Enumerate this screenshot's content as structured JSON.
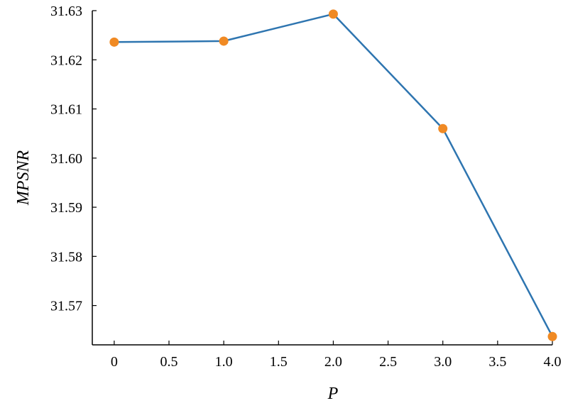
{
  "chart_data": {
    "type": "line",
    "title": "",
    "xlabel": "P",
    "ylabel": "MPSNR",
    "x": [
      0,
      1.0,
      2.0,
      3.0,
      4.0
    ],
    "series": [
      {
        "values": [
          31.6236,
          31.6238,
          31.6293,
          31.606,
          31.5637
        ]
      }
    ],
    "xlim": [
      -0.2,
      4.0
    ],
    "ylim": [
      31.562,
      31.63
    ],
    "xticks": [
      0,
      0.5,
      1.0,
      1.5,
      2.0,
      2.5,
      3.0,
      3.5,
      4.0
    ],
    "xtick_labels": [
      "0",
      "0.5",
      "1.0",
      "1.5",
      "2.0",
      "2.5",
      "3.0",
      "3.5",
      "4.0"
    ],
    "yticks": [
      31.57,
      31.58,
      31.59,
      31.6,
      31.61,
      31.62,
      31.63
    ],
    "ytick_labels": [
      "31.57",
      "31.58",
      "31.59",
      "31.60",
      "31.61",
      "31.62",
      "31.63"
    ],
    "grid": false,
    "legend": false,
    "colors": {
      "line": "#2e75b0",
      "marker": "#f08a24",
      "axis": "#000000"
    }
  }
}
